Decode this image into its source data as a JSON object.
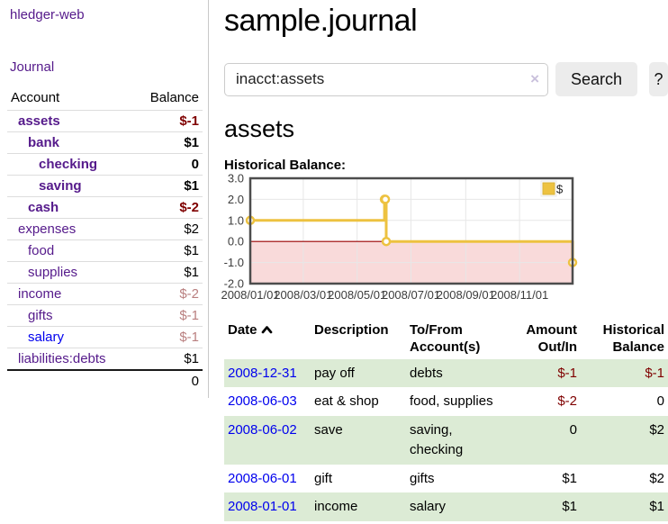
{
  "app": {
    "brand": "hledger-web"
  },
  "sidebar": {
    "journal_link": "Journal",
    "table": {
      "account_header": "Account",
      "balance_header": "Balance",
      "rows": [
        {
          "account": "assets",
          "balance": "$-1",
          "level": 1,
          "bold": true,
          "balance_style": "neg-strong",
          "link_style": "visited"
        },
        {
          "account": "bank",
          "balance": "$1",
          "level": 2,
          "bold": true,
          "balance_style": "",
          "link_style": "visited"
        },
        {
          "account": "checking",
          "balance": "0",
          "level": 3,
          "bold": true,
          "balance_style": "",
          "link_style": "visited"
        },
        {
          "account": "saving",
          "balance": "$1",
          "level": 3,
          "bold": true,
          "balance_style": "",
          "link_style": "visited"
        },
        {
          "account": "cash",
          "balance": "$-2",
          "level": 2,
          "bold": true,
          "balance_style": "neg-strong",
          "link_style": "visited"
        },
        {
          "account": "expenses",
          "balance": "$2",
          "level": 1,
          "bold": false,
          "balance_style": "",
          "link_style": "visited"
        },
        {
          "account": "food",
          "balance": "$1",
          "level": 2,
          "bold": false,
          "balance_style": "",
          "link_style": "visited"
        },
        {
          "account": "supplies",
          "balance": "$1",
          "level": 2,
          "bold": false,
          "balance_style": "",
          "link_style": "visited"
        },
        {
          "account": "income",
          "balance": "$-2",
          "level": 1,
          "bold": false,
          "balance_style": "neg-faded",
          "link_style": "visited"
        },
        {
          "account": "gifts",
          "balance": "$-1",
          "level": 2,
          "bold": false,
          "balance_style": "neg-faded",
          "link_style": "visited"
        },
        {
          "account": "salary",
          "balance": "$-1",
          "level": 2,
          "bold": false,
          "balance_style": "neg-faded",
          "link_style": "unvisited"
        },
        {
          "account": "liabilities:debts",
          "balance": "$1",
          "level": 1,
          "bold": false,
          "balance_style": "",
          "link_style": "visited"
        }
      ],
      "total": "0"
    }
  },
  "header": {
    "title": "sample.journal"
  },
  "search": {
    "value": "inacct:assets",
    "clear_icon": "×",
    "search_button": "Search",
    "help_button": "?"
  },
  "account_page": {
    "title": "assets",
    "chart_label": "Historical Balance:"
  },
  "chart_data": {
    "type": "line",
    "title": "Historical Balance",
    "step": true,
    "series": [
      {
        "name": "$",
        "color": "#edc240",
        "points": [
          [
            "2008-01-01",
            1
          ],
          [
            "2008-06-01",
            2
          ],
          [
            "2008-06-02",
            2
          ],
          [
            "2008-06-03",
            0
          ],
          [
            "2008-12-31",
            -1
          ]
        ]
      }
    ],
    "x_range": [
      "2008-01-01",
      "2008-12-31"
    ],
    "x_ticks": [
      {
        "date": "2008-01-01",
        "label": "2008/01/01"
      },
      {
        "date": "2008-03-01",
        "label": "2008/03/01"
      },
      {
        "date": "2008-05-01",
        "label": "2008/05/01"
      },
      {
        "date": "2008-07-01",
        "label": "2008/07/01"
      },
      {
        "date": "2008-09-01",
        "label": "2008/09/01"
      },
      {
        "date": "2008-11-01",
        "label": "2008/11/01"
      }
    ],
    "ylim": [
      -2,
      3
    ],
    "y_ticks": [
      {
        "value": 3,
        "label": "3.0"
      },
      {
        "value": 2,
        "label": "2.0"
      },
      {
        "value": 1,
        "label": "1.0"
      },
      {
        "value": 0,
        "label": "0.0"
      },
      {
        "value": -1,
        "label": "-1.0"
      },
      {
        "value": -2,
        "label": "-2.0"
      }
    ],
    "grid": true,
    "legend_position": "top-right",
    "negative_region_color": "#f9dada",
    "zero_line_color": "#990000",
    "border_color": "#4d4d4d",
    "gridline_color": "#e7e7e7"
  },
  "register": {
    "headers": {
      "date": "Date",
      "description": "Description",
      "accounts": "To/From Account(s)",
      "amount": "Amount Out/In",
      "balance": "Historical Balance"
    },
    "rows": [
      {
        "date": "2008-12-31",
        "description": "pay off",
        "accounts": "debts",
        "amount": "$-1",
        "balance": "$-1",
        "amount_negative": true,
        "balance_negative": true
      },
      {
        "date": "2008-06-03",
        "description": "eat & shop",
        "accounts": "food, supplies",
        "amount": "$-2",
        "balance": "0",
        "amount_negative": true,
        "balance_negative": false
      },
      {
        "date": "2008-06-02",
        "description": "save",
        "accounts": "saving, checking",
        "amount": "0",
        "balance": "$2",
        "amount_negative": false,
        "balance_negative": false
      },
      {
        "date": "2008-06-01",
        "description": "gift",
        "accounts": "gifts",
        "amount": "$1",
        "balance": "$2",
        "amount_negative": false,
        "balance_negative": false
      },
      {
        "date": "2008-01-01",
        "description": "income",
        "accounts": "salary",
        "amount": "$1",
        "balance": "$1",
        "amount_negative": false,
        "balance_negative": false
      }
    ]
  }
}
